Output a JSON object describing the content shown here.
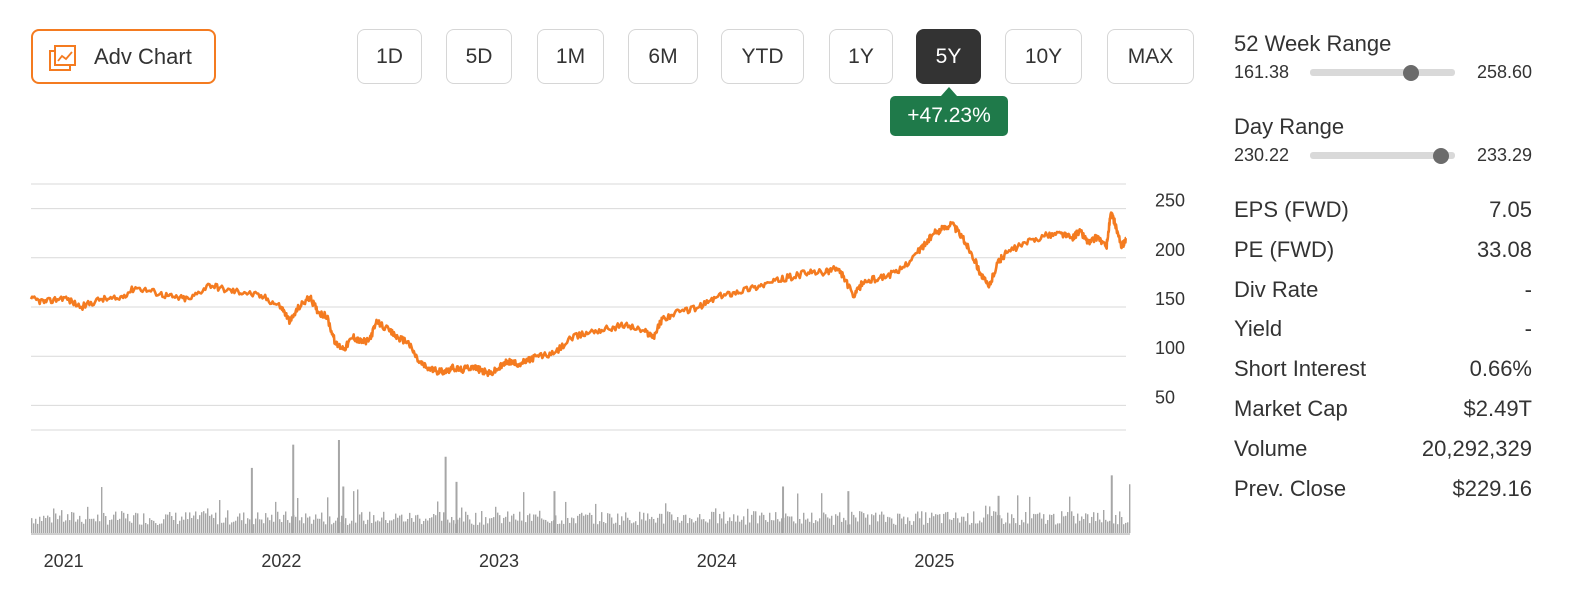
{
  "toolbar": {
    "adv_chart_label": "Adv Chart",
    "ranges": [
      "1D",
      "5D",
      "1M",
      "6M",
      "YTD",
      "1Y",
      "5Y",
      "10Y",
      "MAX"
    ],
    "active_range": "5Y",
    "change_label": "+47.23%",
    "change_color": "#1f7a4a"
  },
  "stats": {
    "week52": {
      "title": "52 Week Range",
      "low": "161.38",
      "high": "258.60",
      "current": 229.16
    },
    "day": {
      "title": "Day Range",
      "low": "230.22",
      "high": "233.29",
      "current": 233.0
    },
    "rows": [
      {
        "label": "EPS (FWD)",
        "value": "7.05"
      },
      {
        "label": "PE (FWD)",
        "value": "33.08"
      },
      {
        "label": "Div Rate",
        "value": "-"
      },
      {
        "label": "Yield",
        "value": "-"
      },
      {
        "label": "Short Interest",
        "value": "0.66%"
      },
      {
        "label": "Market Cap",
        "value": "$2.49T"
      },
      {
        "label": "Volume",
        "value": "20,292,329"
      },
      {
        "label": "Prev. Close",
        "value": "$229.16"
      }
    ]
  },
  "chart_data": {
    "type": "line",
    "line_color": "#f47b20",
    "volume_color": "#a6a6a6",
    "grid": true,
    "x_range": [
      2020.85,
      2025.88
    ],
    "ylim": [
      25,
      275
    ],
    "y_ticks": [
      50,
      100,
      150,
      200,
      250
    ],
    "x_ticks": [
      {
        "value": 2021.0,
        "label": "2021"
      },
      {
        "value": 2022.0,
        "label": "2022"
      },
      {
        "value": 2023.0,
        "label": "2023"
      },
      {
        "value": 2024.0,
        "label": "2024"
      },
      {
        "value": 2025.0,
        "label": "2025"
      }
    ],
    "series": [
      {
        "x": [
          2020.85,
          2020.92,
          2021.0,
          2021.08,
          2021.17,
          2021.25,
          2021.33,
          2021.42,
          2021.5,
          2021.58,
          2021.67,
          2021.75,
          2021.83,
          2021.92,
          2022.0,
          2022.04,
          2022.08,
          2022.13,
          2022.17,
          2022.21,
          2022.25,
          2022.29,
          2022.33,
          2022.36,
          2022.4,
          2022.44,
          2022.5,
          2022.54,
          2022.58,
          2022.63,
          2022.67,
          2022.71,
          2022.75,
          2022.79,
          2022.83,
          2022.88,
          2022.92,
          2022.96,
          2023.0,
          2023.04,
          2023.08,
          2023.13,
          2023.17,
          2023.25,
          2023.33,
          2023.42,
          2023.5,
          2023.58,
          2023.67,
          2023.71,
          2023.75,
          2023.83,
          2023.92,
          2024.0,
          2024.08,
          2024.17,
          2024.25,
          2024.33,
          2024.42,
          2024.5,
          2024.54,
          2024.58,
          2024.63,
          2024.67,
          2024.75,
          2024.83,
          2024.92,
          2024.96,
          2025.0,
          2025.04,
          2025.08,
          2025.13,
          2025.17,
          2025.21,
          2025.25,
          2025.29,
          2025.33,
          2025.42,
          2025.5,
          2025.58,
          2025.63,
          2025.67,
          2025.71,
          2025.75,
          2025.79,
          2025.81,
          2025.83,
          2025.86,
          2025.88
        ],
        "values": [
          158,
          155,
          160,
          150,
          158,
          158,
          170,
          165,
          160,
          158,
          173,
          167,
          165,
          160,
          150,
          135,
          150,
          160,
          145,
          140,
          112,
          108,
          120,
          115,
          115,
          135,
          125,
          118,
          115,
          95,
          88,
          85,
          85,
          88,
          86,
          90,
          85,
          82,
          88,
          95,
          92,
          95,
          100,
          102,
          118,
          125,
          128,
          132,
          125,
          120,
          138,
          145,
          150,
          160,
          165,
          170,
          175,
          180,
          185,
          185,
          190,
          182,
          160,
          175,
          180,
          185,
          205,
          215,
          225,
          230,
          235,
          220,
          205,
          185,
          170,
          195,
          205,
          215,
          222,
          225,
          220,
          227,
          215,
          222,
          210,
          245,
          235,
          210,
          220
        ]
      }
    ],
    "volume": {
      "spikes": [
        {
          "x": 2021.86,
          "v": 0.7
        },
        {
          "x": 2022.05,
          "v": 0.95
        },
        {
          "x": 2022.26,
          "v": 1.0
        },
        {
          "x": 2022.28,
          "v": 0.5
        },
        {
          "x": 2022.75,
          "v": 0.82
        },
        {
          "x": 2022.8,
          "v": 0.55
        },
        {
          "x": 2023.25,
          "v": 0.45
        },
        {
          "x": 2024.3,
          "v": 0.5
        },
        {
          "x": 2024.6,
          "v": 0.45
        },
        {
          "x": 2025.29,
          "v": 0.4
        },
        {
          "x": 2025.81,
          "v": 0.62
        }
      ]
    }
  }
}
